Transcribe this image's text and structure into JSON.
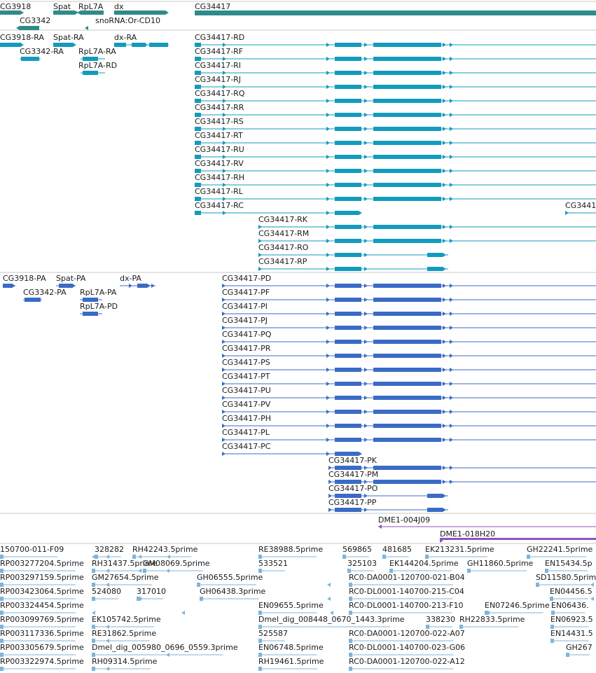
{
  "colors": {
    "gene": "#2e8b8b",
    "rna": "#129bbd",
    "protein": "#3a6cc6",
    "clone": "#8a55c2",
    "est": "#7fb5db",
    "separator": "#c8c8c8",
    "text": "#1a1a1a"
  },
  "tracks": {
    "genes": [
      {
        "label": "CG3918"
      },
      {
        "label": "CG3342"
      },
      {
        "label": "Spat"
      },
      {
        "label": "RpL7A"
      },
      {
        "label": "snoRNA:Or-CD10"
      },
      {
        "label": "dx"
      },
      {
        "label": "CG34417"
      }
    ],
    "transcripts": {
      "small": [
        {
          "label": "CG3918-RA"
        },
        {
          "label": "Spat-RA"
        },
        {
          "label": "dx-RA"
        },
        {
          "label": "CG3342-RA"
        },
        {
          "label": "RpL7A-RA"
        },
        {
          "label": "RpL7A-RD"
        }
      ],
      "cg34417": [
        {
          "label": "CG34417-RD"
        },
        {
          "label": "CG34417-RF"
        },
        {
          "label": "CG34417-RI"
        },
        {
          "label": "CG34417-RJ"
        },
        {
          "label": "CG34417-RQ"
        },
        {
          "label": "CG34417-RR"
        },
        {
          "label": "CG34417-RS"
        },
        {
          "label": "CG34417-RT"
        },
        {
          "label": "CG34417-RU"
        },
        {
          "label": "CG34417-RV"
        },
        {
          "label": "CG34417-RH"
        },
        {
          "label": "CG34417-RL"
        },
        {
          "label": "CG34417-RC"
        },
        {
          "label": "CG3441"
        },
        {
          "label": "CG34417-RK"
        },
        {
          "label": "CG34417-RM"
        },
        {
          "label": "CG34417-RO"
        },
        {
          "label": "CG34417-RP"
        }
      ]
    },
    "proteins": {
      "small": [
        {
          "label": "CG3918-PA"
        },
        {
          "label": "Spat-PA"
        },
        {
          "label": "dx-PA"
        },
        {
          "label": "CG3342-PA"
        },
        {
          "label": "RpL7A-PA"
        },
        {
          "label": "RpL7A-PD"
        }
      ],
      "cg34417": [
        {
          "label": "CG34417-PD"
        },
        {
          "label": "CG34417-PF"
        },
        {
          "label": "CG34417-PI"
        },
        {
          "label": "CG34417-PJ"
        },
        {
          "label": "CG34417-PQ"
        },
        {
          "label": "CG34417-PR"
        },
        {
          "label": "CG34417-PS"
        },
        {
          "label": "CG34417-PT"
        },
        {
          "label": "CG34417-PU"
        },
        {
          "label": "CG34417-PV"
        },
        {
          "label": "CG34417-PH"
        },
        {
          "label": "CG34417-PL"
        },
        {
          "label": "CG34417-PC"
        },
        {
          "label": "CG34417-PK"
        },
        {
          "label": "CG34417-PM"
        },
        {
          "label": "CG34417-PO"
        },
        {
          "label": "CG34417-PP"
        }
      ]
    },
    "clones": [
      {
        "label": "DME1-004J09"
      },
      {
        "label": "DME1-018H20"
      }
    ],
    "ests": [
      {
        "label": "150700-011-F09"
      },
      {
        "label": "328282"
      },
      {
        "label": "RH42243.5prime"
      },
      {
        "label": "RE38988.5prime"
      },
      {
        "label": "569865"
      },
      {
        "label": "481685"
      },
      {
        "label": "EK213231.5prime"
      },
      {
        "label": "GH22241.5prime"
      },
      {
        "label": "RP003277204.5prime"
      },
      {
        "label": "RH31437.5prime"
      },
      {
        "label": "GM08069.5prime"
      },
      {
        "label": "533521"
      },
      {
        "label": "325103"
      },
      {
        "label": "EK144204.5prime"
      },
      {
        "label": "GH11860.5prime"
      },
      {
        "label": "EN15434.5p"
      },
      {
        "label": "RP003297159.5prime"
      },
      {
        "label": "GM27654.5prime"
      },
      {
        "label": "GH06555.5prime"
      },
      {
        "label": "RC0-DA0001-120700-021-B04"
      },
      {
        "label": "SD11580.5prime"
      },
      {
        "label": "RP003423064.5prime"
      },
      {
        "label": "524080"
      },
      {
        "label": "317010"
      },
      {
        "label": "GH06438.3prime"
      },
      {
        "label": "RC0-DL0001-140700-215-C04"
      },
      {
        "label": "EN04456.5"
      },
      {
        "label": "RP003324454.5prime"
      },
      {
        "label": "EN09655.5prime"
      },
      {
        "label": "RC0-DL0001-140700-213-F10"
      },
      {
        "label": "EN07246.5prime"
      },
      {
        "label": "EN06436."
      },
      {
        "label": "RP003099769.5prime"
      },
      {
        "label": "EK105742.5prime"
      },
      {
        "label": "Dmel_dig_008448_0670_1443.3prime"
      },
      {
        "label": "338230"
      },
      {
        "label": "RH22833.5prime"
      },
      {
        "label": "EN06923.5"
      },
      {
        "label": "RP003117336.5prime"
      },
      {
        "label": "RE31862.5prime"
      },
      {
        "label": "525587"
      },
      {
        "label": "RC0-DA0001-120700-022-A07"
      },
      {
        "label": "EN14431.5"
      },
      {
        "label": "RP003305679.5prime"
      },
      {
        "label": "Dmel_dig_005980_0696_0559.3prime"
      },
      {
        "label": "EN06748.5prime"
      },
      {
        "label": "RC0-DL0001-140700-023-G06"
      },
      {
        "label": "GH267"
      },
      {
        "label": "RP003322974.5prime"
      },
      {
        "label": "RH09314.5prime"
      },
      {
        "label": "RH19461.5prime"
      },
      {
        "label": "RC0-DA0001-120700-022-A12"
      }
    ]
  }
}
